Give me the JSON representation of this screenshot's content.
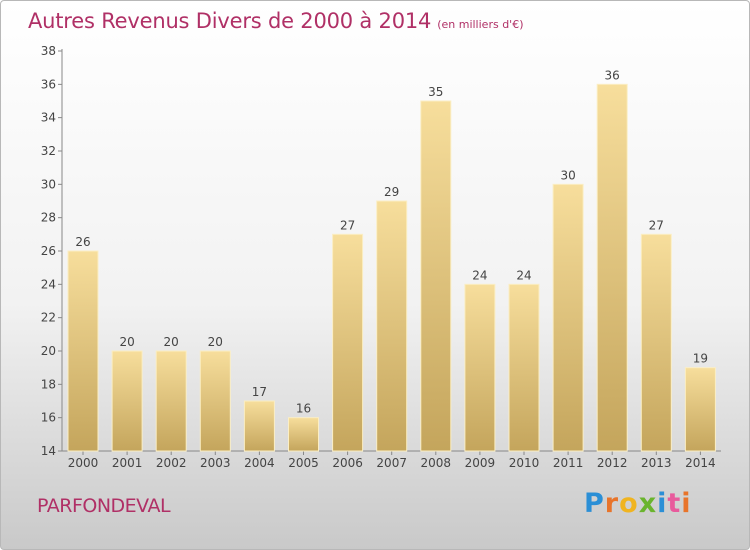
{
  "header": {
    "title": "Autres Revenus Divers de 2000 à 2014",
    "unit": "(en milliers d'€)"
  },
  "footer": {
    "town": "PARFONDEVAL",
    "brand": "Proxiti"
  },
  "colors": {
    "title": "#b03066",
    "bar_light": "#f6dc98",
    "bar_dark": "#c9aa60"
  },
  "chart_data": {
    "type": "bar",
    "title": "Autres Revenus Divers de 2000 à 2014",
    "xlabel": "",
    "ylabel": "",
    "categories": [
      "2000",
      "2001",
      "2002",
      "2003",
      "2004",
      "2005",
      "2006",
      "2007",
      "2008",
      "2009",
      "2010",
      "2011",
      "2012",
      "2013",
      "2014"
    ],
    "values": [
      26,
      20,
      20,
      20,
      17,
      16,
      27,
      29,
      35,
      24,
      24,
      30,
      36,
      27,
      19
    ],
    "ylim": [
      14,
      38
    ],
    "yticks": [
      14,
      16,
      18,
      20,
      22,
      24,
      26,
      28,
      30,
      32,
      34,
      36,
      38
    ],
    "grid": false,
    "data_labels": true
  }
}
